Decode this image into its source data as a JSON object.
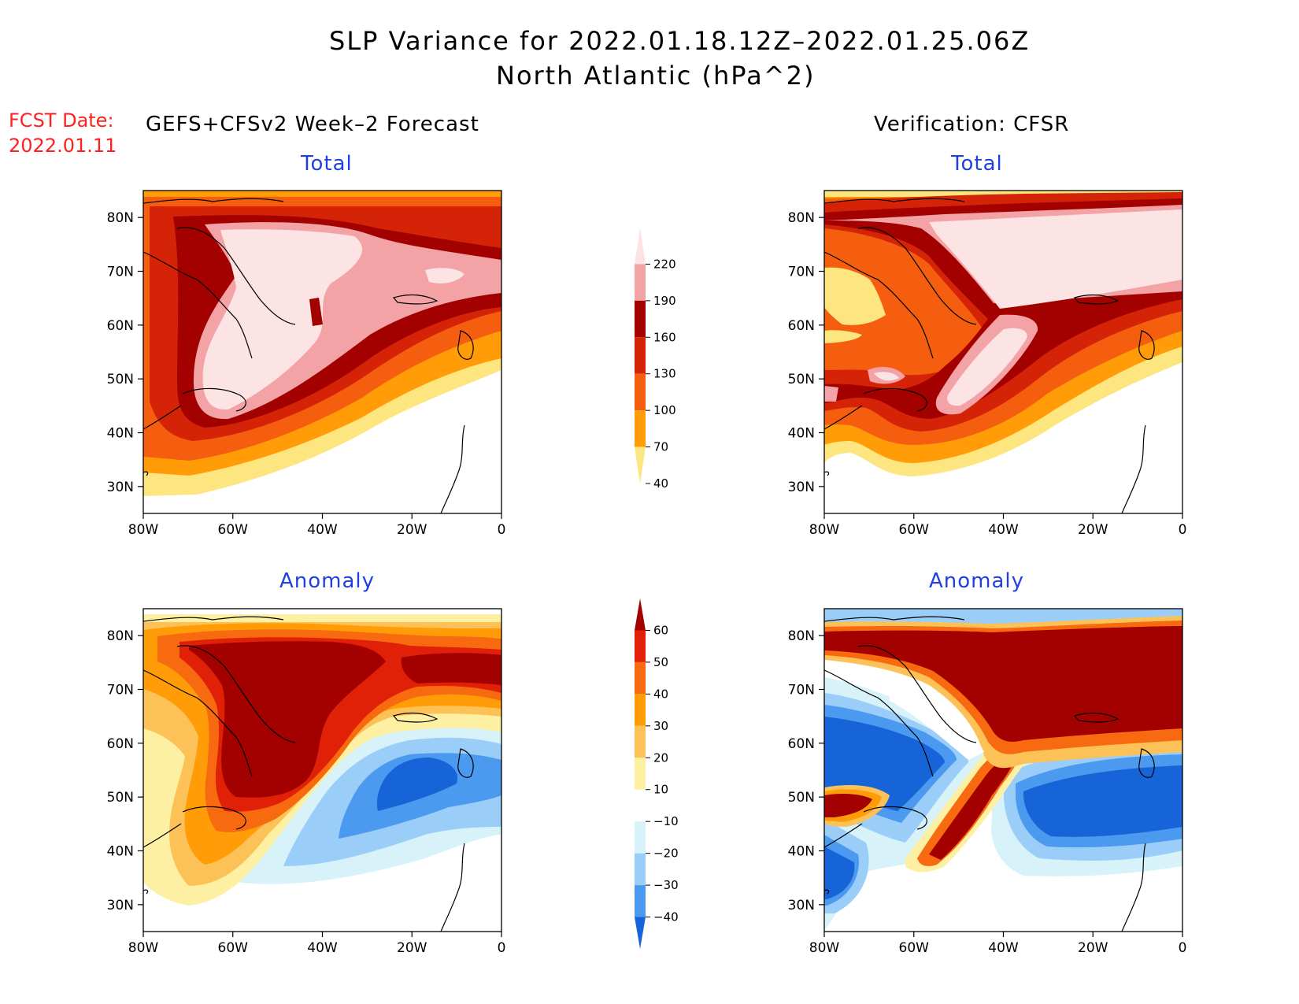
{
  "header": {
    "title_line1": "SLP Variance for 2022.01.18.12Z–2022.01.25.06Z",
    "title_line2": "North Atlantic (hPa^2)"
  },
  "fcst": {
    "label": "FCST Date:",
    "date": "2022.01.11"
  },
  "columns": {
    "left": "GEFS+CFSv2 Week–2 Forecast",
    "right": "Verification: CFSR"
  },
  "panel_titles": {
    "total": "Total",
    "anomaly": "Anomaly"
  },
  "axes": {
    "lat_ticks": [
      "80N",
      "70N",
      "60N",
      "50N",
      "40N",
      "30N"
    ],
    "lon_ticks": [
      "80W",
      "60W",
      "40W",
      "20W",
      "0"
    ],
    "lat_range": [
      25,
      85
    ],
    "lon_range": [
      -80,
      0
    ]
  },
  "colorbars": {
    "total": {
      "levels": [
        "220",
        "190",
        "160",
        "130",
        "100",
        "70",
        "40"
      ],
      "colors": [
        "#fde4e4",
        "#f3a2a5",
        "#a30000",
        "#d52308",
        "#f55e0f",
        "#ff9c08",
        "#fde680"
      ]
    },
    "anomaly": {
      "levels": [
        "60",
        "50",
        "40",
        "30",
        "20",
        "10",
        "−10",
        "−20",
        "−30",
        "−40"
      ],
      "colors": [
        "#a30000",
        "#e02007",
        "#f86a10",
        "#ff9c08",
        "#fdc257",
        "#fef0a2",
        "#ffffff",
        "#d8f2fa",
        "#9acdf7",
        "#4c9af0",
        "#1764d8"
      ]
    }
  }
}
